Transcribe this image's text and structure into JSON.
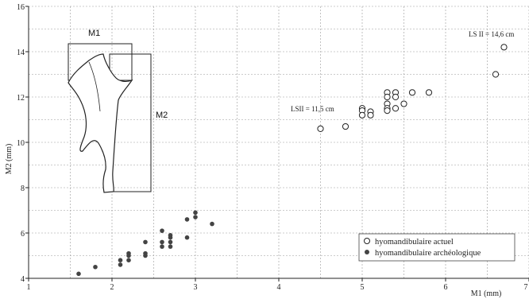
{
  "chart_data": {
    "type": "scatter",
    "xlabel": "M1 (mm)",
    "ylabel": "M2 (mm)",
    "xlim": [
      1,
      7
    ],
    "ylim": [
      4,
      16
    ],
    "xticks": [
      1,
      2,
      3,
      4,
      5,
      6,
      7
    ],
    "yticks": [
      4,
      6,
      8,
      10,
      12,
      14,
      16
    ],
    "grid": true,
    "legend_position": "bottom-right",
    "series": [
      {
        "name": "hyomandibulaire actuel",
        "marker": "open-circle",
        "color": "#222222",
        "points": [
          {
            "x": 4.5,
            "y": 10.6
          },
          {
            "x": 4.8,
            "y": 10.7
          },
          {
            "x": 5.0,
            "y": 11.5
          },
          {
            "x": 5.0,
            "y": 11.4
          },
          {
            "x": 5.0,
            "y": 11.2
          },
          {
            "x": 5.1,
            "y": 11.35
          },
          {
            "x": 5.1,
            "y": 11.2
          },
          {
            "x": 5.3,
            "y": 12.2
          },
          {
            "x": 5.3,
            "y": 12.0
          },
          {
            "x": 5.3,
            "y": 11.7
          },
          {
            "x": 5.3,
            "y": 11.5
          },
          {
            "x": 5.3,
            "y": 11.4
          },
          {
            "x": 5.4,
            "y": 12.2
          },
          {
            "x": 5.4,
            "y": 12.0
          },
          {
            "x": 5.4,
            "y": 11.5
          },
          {
            "x": 5.5,
            "y": 11.7
          },
          {
            "x": 5.6,
            "y": 12.2
          },
          {
            "x": 5.8,
            "y": 12.2
          },
          {
            "x": 6.6,
            "y": 13.0
          },
          {
            "x": 6.7,
            "y": 14.2
          }
        ]
      },
      {
        "name": "hyomandibulaire archéologique",
        "marker": "filled-circle",
        "color": "#444444",
        "points": [
          {
            "x": 1.6,
            "y": 4.2
          },
          {
            "x": 1.8,
            "y": 4.5
          },
          {
            "x": 2.1,
            "y": 4.6
          },
          {
            "x": 2.1,
            "y": 4.8
          },
          {
            "x": 2.2,
            "y": 4.8
          },
          {
            "x": 2.2,
            "y": 5.0
          },
          {
            "x": 2.2,
            "y": 5.1
          },
          {
            "x": 2.4,
            "y": 5.0
          },
          {
            "x": 2.4,
            "y": 5.1
          },
          {
            "x": 2.4,
            "y": 5.6
          },
          {
            "x": 2.6,
            "y": 5.4
          },
          {
            "x": 2.6,
            "y": 5.6
          },
          {
            "x": 2.6,
            "y": 6.1
          },
          {
            "x": 2.7,
            "y": 5.4
          },
          {
            "x": 2.7,
            "y": 5.6
          },
          {
            "x": 2.7,
            "y": 5.8
          },
          {
            "x": 2.7,
            "y": 5.9
          },
          {
            "x": 2.9,
            "y": 5.8
          },
          {
            "x": 2.9,
            "y": 6.6
          },
          {
            "x": 3.0,
            "y": 6.7
          },
          {
            "x": 3.0,
            "y": 6.9
          },
          {
            "x": 3.2,
            "y": 6.4
          }
        ]
      }
    ],
    "annotations": [
      {
        "text": "LS II = 14,6 cm",
        "x": 6.7,
        "y": 14.2
      },
      {
        "text": "LSII = 11,5 cm",
        "x": 4.5,
        "y": 10.6
      }
    ],
    "inset": {
      "description_labels": [
        "M1",
        "M2"
      ]
    }
  }
}
